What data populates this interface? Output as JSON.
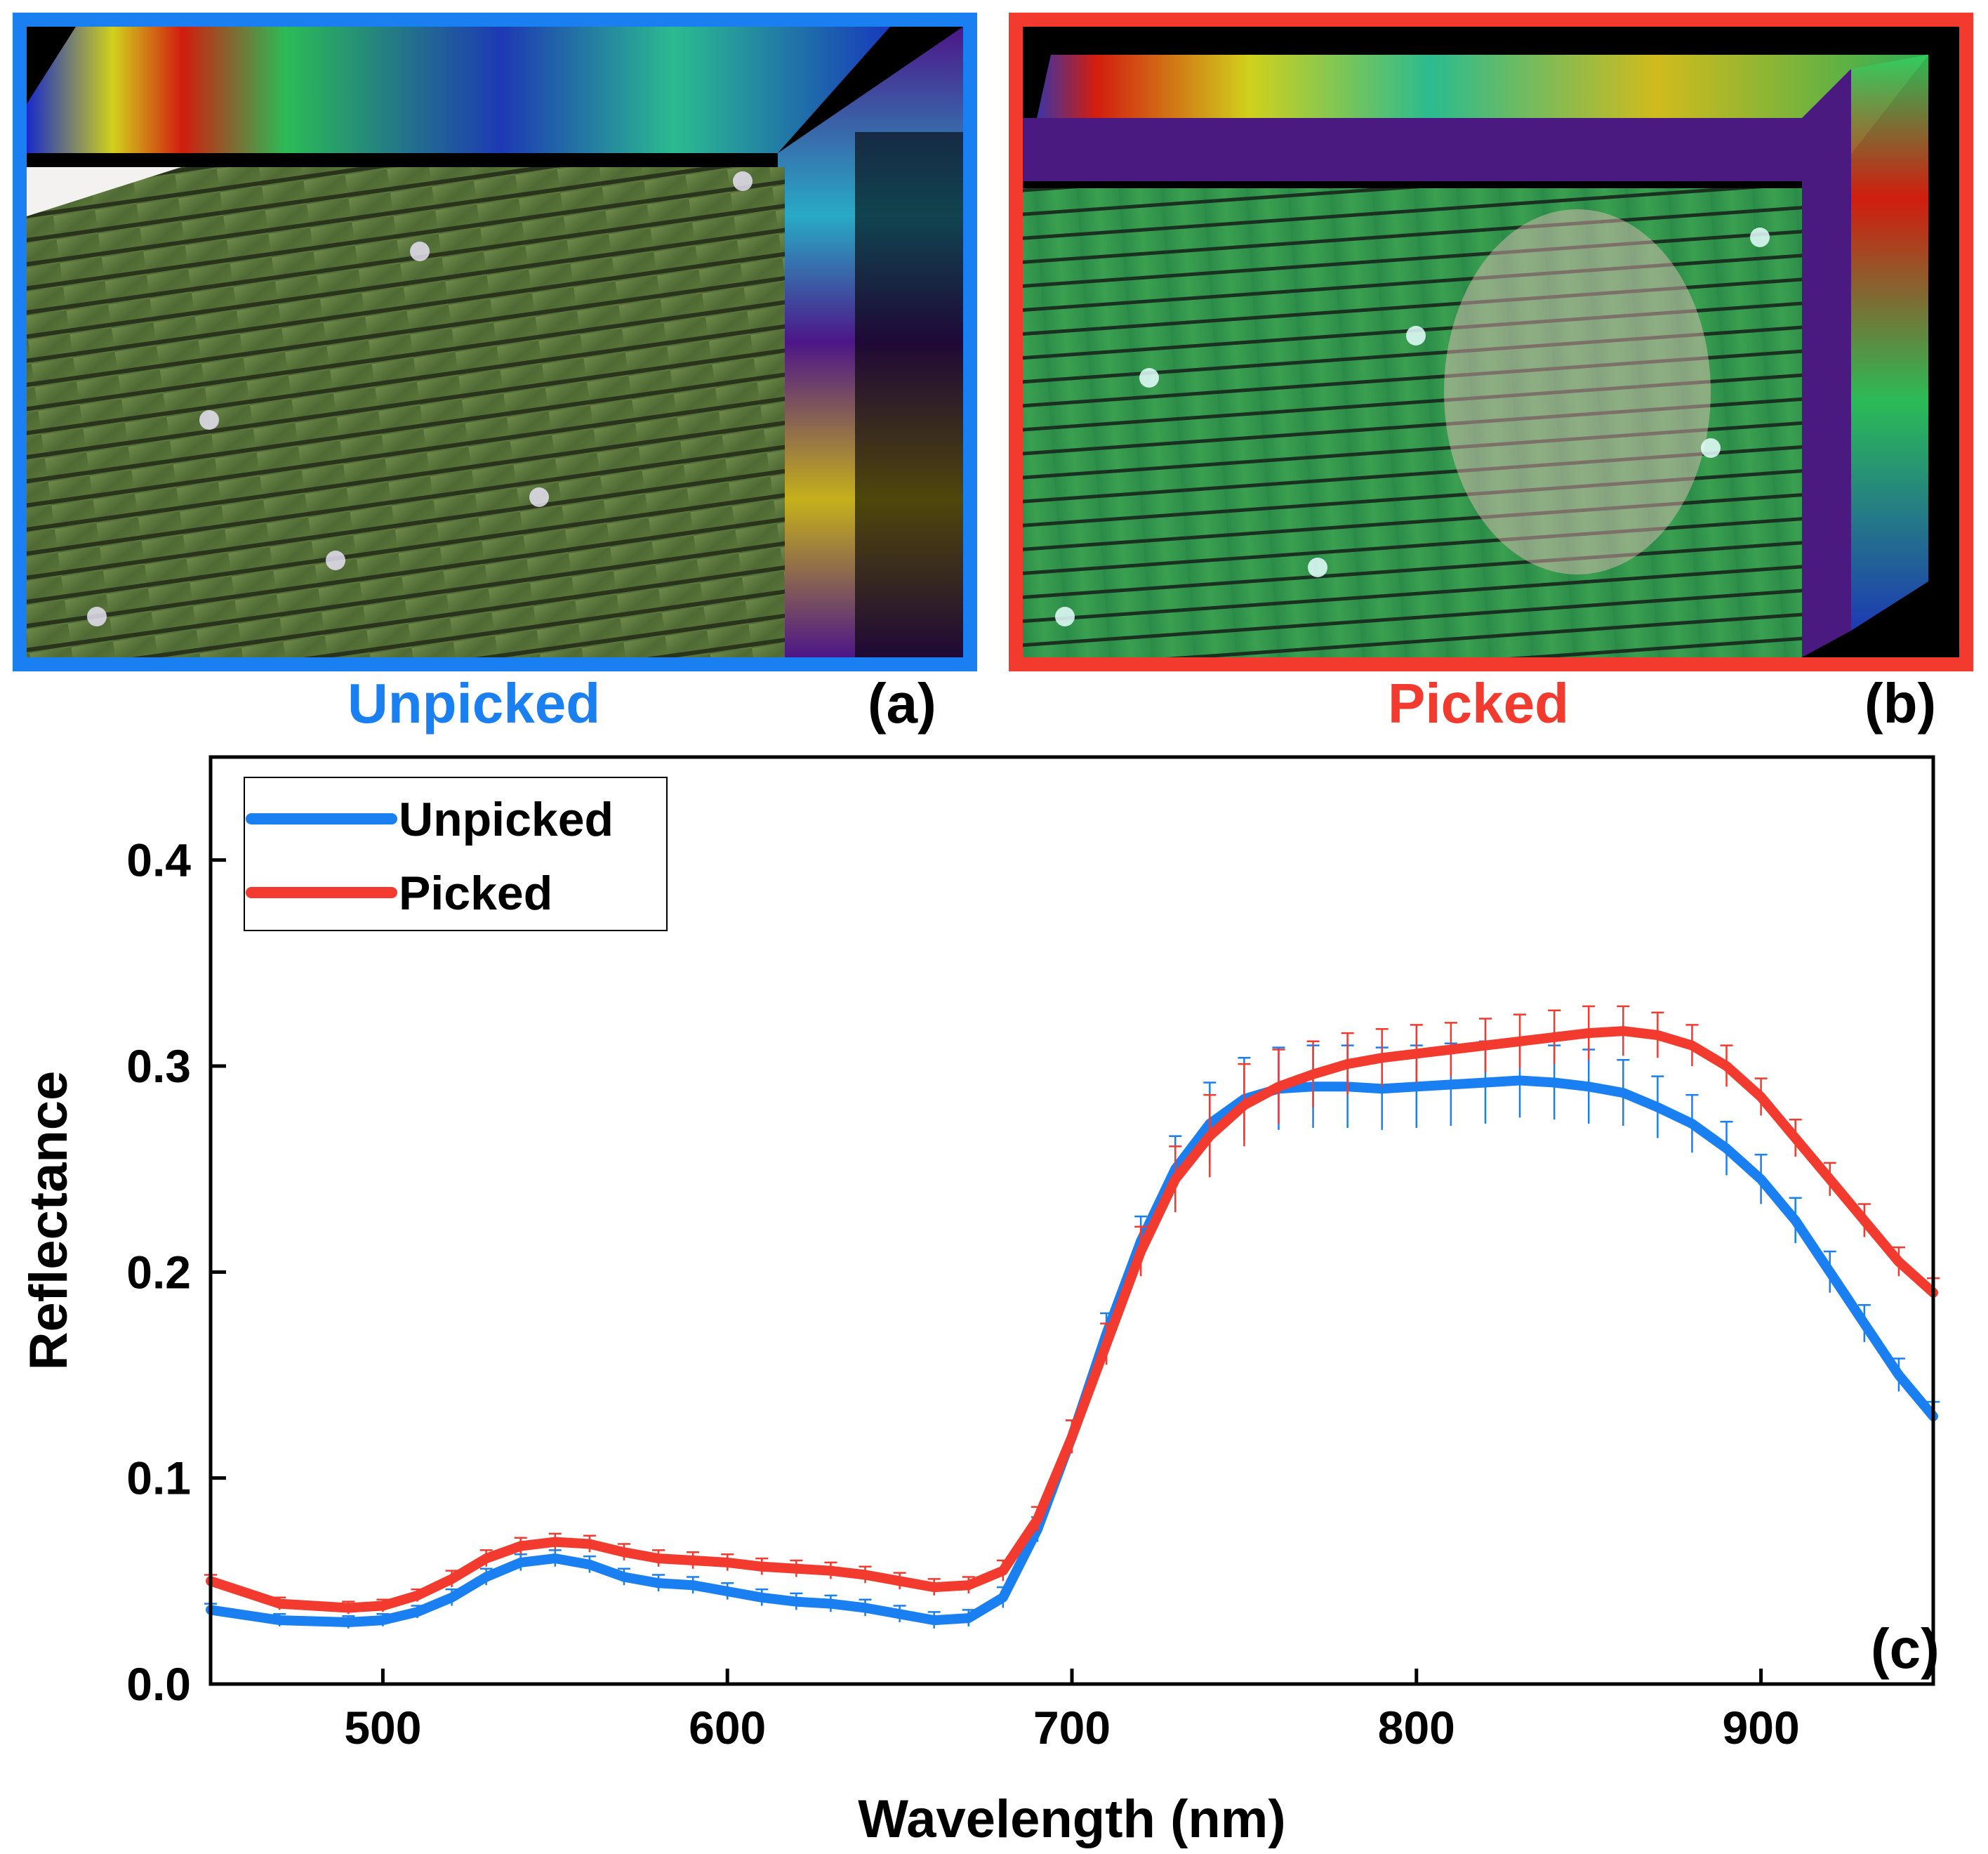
{
  "panels": {
    "a": {
      "label": "Unpicked",
      "letter": "(a)",
      "color": "#1a7ff0"
    },
    "b": {
      "label": "Picked",
      "letter": "(b)",
      "color": "#f23a2e"
    }
  },
  "colors": {
    "unpicked": "#1a7ff0",
    "picked": "#f23a2e",
    "canopy_a": "#5c7a3a",
    "canopy_b": "#2f8f4a",
    "cube_top": "#4bd04b",
    "cube_side": "#5a1aa0"
  },
  "chart_data": {
    "type": "line",
    "panel_letter": "(c)",
    "xlabel": "Wavelength (nm)",
    "ylabel": "Reflectance",
    "xlim": [
      450,
      950
    ],
    "ylim": [
      0,
      0.45
    ],
    "xticks": [
      500,
      600,
      700,
      800,
      900
    ],
    "yticks": [
      0.0,
      0.1,
      0.2,
      0.3,
      0.4
    ],
    "xtick_labels": [
      "500",
      "600",
      "700",
      "800",
      "900"
    ],
    "ytick_labels": [
      "0.0",
      "0.1",
      "0.2",
      "0.3",
      "0.4"
    ],
    "legend": {
      "position": "top-left"
    },
    "x": [
      450,
      470,
      490,
      500,
      510,
      520,
      530,
      540,
      550,
      560,
      570,
      580,
      590,
      600,
      610,
      620,
      630,
      640,
      650,
      660,
      670,
      680,
      690,
      700,
      710,
      720,
      730,
      740,
      750,
      760,
      770,
      780,
      790,
      800,
      810,
      820,
      830,
      840,
      850,
      860,
      870,
      880,
      890,
      900,
      910,
      920,
      930,
      940,
      950
    ],
    "series": [
      {
        "name": "Unpicked",
        "color": "#1a7ff0",
        "values": [
          0.036,
          0.031,
          0.03,
          0.031,
          0.035,
          0.042,
          0.052,
          0.059,
          0.061,
          0.058,
          0.052,
          0.049,
          0.048,
          0.045,
          0.042,
          0.04,
          0.039,
          0.037,
          0.034,
          0.031,
          0.032,
          0.042,
          0.075,
          0.12,
          0.17,
          0.215,
          0.25,
          0.272,
          0.284,
          0.289,
          0.29,
          0.29,
          0.289,
          0.29,
          0.291,
          0.292,
          0.293,
          0.292,
          0.29,
          0.287,
          0.28,
          0.272,
          0.26,
          0.245,
          0.225,
          0.2,
          0.175,
          0.15,
          0.13
        ],
        "errors": [
          0.003,
          0.003,
          0.003,
          0.003,
          0.003,
          0.004,
          0.004,
          0.004,
          0.004,
          0.004,
          0.004,
          0.004,
          0.004,
          0.004,
          0.004,
          0.004,
          0.004,
          0.004,
          0.004,
          0.004,
          0.004,
          0.005,
          0.006,
          0.008,
          0.01,
          0.012,
          0.016,
          0.02,
          0.02,
          0.02,
          0.02,
          0.02,
          0.02,
          0.02,
          0.02,
          0.02,
          0.018,
          0.018,
          0.018,
          0.016,
          0.015,
          0.014,
          0.013,
          0.012,
          0.011,
          0.01,
          0.009,
          0.008,
          0.007
        ]
      },
      {
        "name": "Picked",
        "color": "#f23a2e",
        "values": [
          0.05,
          0.039,
          0.037,
          0.038,
          0.043,
          0.051,
          0.061,
          0.067,
          0.069,
          0.068,
          0.064,
          0.061,
          0.06,
          0.059,
          0.057,
          0.056,
          0.055,
          0.053,
          0.05,
          0.047,
          0.048,
          0.055,
          0.08,
          0.12,
          0.165,
          0.21,
          0.245,
          0.266,
          0.281,
          0.29,
          0.296,
          0.301,
          0.304,
          0.306,
          0.308,
          0.31,
          0.312,
          0.314,
          0.316,
          0.317,
          0.315,
          0.31,
          0.3,
          0.285,
          0.265,
          0.245,
          0.225,
          0.205,
          0.19
        ],
        "errors": [
          0.003,
          0.003,
          0.003,
          0.003,
          0.003,
          0.004,
          0.004,
          0.004,
          0.004,
          0.004,
          0.004,
          0.004,
          0.004,
          0.004,
          0.004,
          0.004,
          0.004,
          0.004,
          0.004,
          0.004,
          0.004,
          0.005,
          0.006,
          0.008,
          0.01,
          0.012,
          0.016,
          0.02,
          0.02,
          0.018,
          0.016,
          0.015,
          0.014,
          0.014,
          0.013,
          0.013,
          0.013,
          0.013,
          0.013,
          0.012,
          0.011,
          0.01,
          0.01,
          0.009,
          0.009,
          0.008,
          0.008,
          0.007,
          0.007
        ]
      }
    ]
  }
}
